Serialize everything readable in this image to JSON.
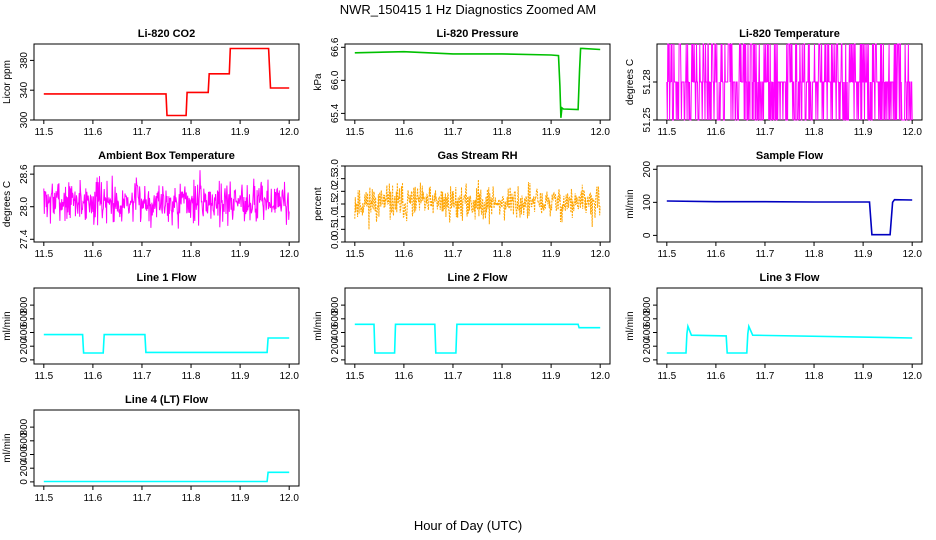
{
  "figure": {
    "title": "NWR_150415  1 Hz Diagnostics Zoomed AM",
    "xlabel": "Hour of Day (UTC)"
  },
  "chart_data": [
    {
      "type": "line",
      "title": "Li-820 CO2",
      "ylabel": "Licor ppm",
      "color": "#ff0000",
      "xlim": [
        11.48,
        12.02
      ],
      "ylim": [
        300,
        402
      ],
      "xticks": [
        "11.5",
        "11.6",
        "11.7",
        "11.8",
        "11.9",
        "12.0"
      ],
      "yticks": [
        "300",
        "340",
        "380"
      ],
      "series": [
        {
          "x": [
            11.5,
            11.749,
            11.751,
            11.79,
            11.792,
            11.835,
            11.837,
            11.878,
            11.88,
            11.958,
            11.962,
            12.0
          ],
          "y": [
            335,
            335,
            306,
            306,
            337,
            337,
            362,
            362,
            396,
            396,
            343,
            343
          ]
        }
      ]
    },
    {
      "type": "line",
      "title": "Li-820 Pressure",
      "ylabel": "kPa",
      "color": "#00c000",
      "xlim": [
        11.48,
        12.02
      ],
      "ylim": [
        65.28,
        66.66
      ],
      "xticks": [
        "11.5",
        "11.6",
        "11.7",
        "11.8",
        "11.9",
        "12.0"
      ],
      "yticks": [
        "65.4",
        "66.0",
        "66.6"
      ],
      "series": [
        {
          "x": [
            11.5,
            11.6,
            11.7,
            11.8,
            11.9,
            11.915,
            11.918,
            11.92,
            11.922,
            11.925,
            11.955,
            11.958,
            11.96,
            11.964,
            12.0
          ],
          "y": [
            66.5,
            66.52,
            66.48,
            66.48,
            66.46,
            66.45,
            65.9,
            65.32,
            65.5,
            65.48,
            65.47,
            66.2,
            66.58,
            66.58,
            66.56
          ]
        }
      ]
    },
    {
      "type": "line",
      "title": "Li-820 Temperature",
      "ylabel": "degrees C",
      "color": "#ff00ff",
      "xlim": [
        11.48,
        12.02
      ],
      "ylim": [
        51.25,
        51.31
      ],
      "xticks": [
        "11.5",
        "11.6",
        "11.7",
        "11.8",
        "11.9",
        "12.0"
      ],
      "yticks": [
        "51.25",
        "51.28"
      ],
      "noise": {
        "kind": "discrete",
        "levels": [
          51.25,
          51.28,
          51.31
        ],
        "base": 51.28,
        "seed": 3
      }
    },
    {
      "type": "line",
      "title": "Ambient Box Temperature",
      "ylabel": "degrees C",
      "color": "#ff00ff",
      "xlim": [
        11.48,
        12.02
      ],
      "ylim": [
        27.35,
        28.75
      ],
      "xticks": [
        "11.5",
        "11.6",
        "11.7",
        "11.8",
        "11.9",
        "12.0"
      ],
      "yticks": [
        "27.4",
        "28.0",
        "28.6"
      ],
      "noise": {
        "kind": "gauss",
        "mean": 28.1,
        "sd": 0.2,
        "min": 27.45,
        "max": 28.7,
        "seed": 7
      }
    },
    {
      "type": "line",
      "title": "Gas Stream RH",
      "ylabel": "percent",
      "color": "#ffa500",
      "xlim": [
        11.48,
        12.02
      ],
      "ylim": [
        0,
        3.0
      ],
      "xticks": [
        "11.5",
        "11.6",
        "11.7",
        "11.8",
        "11.9",
        "12.0"
      ],
      "yticks": [
        "0.0",
        "0.5",
        "1.0",
        "1.5",
        "2.0",
        "2.5",
        "3.0"
      ],
      "noise": {
        "kind": "gauss",
        "mean": 1.55,
        "sd": 0.35,
        "min": 0.05,
        "max": 2.9,
        "seed": 11
      }
    },
    {
      "type": "line",
      "title": "Sample Flow",
      "ylabel": "ml/min",
      "color": "#0000c0",
      "xlim": [
        11.48,
        12.02
      ],
      "ylim": [
        -20,
        210
      ],
      "xticks": [
        "11.5",
        "11.6",
        "11.7",
        "11.8",
        "11.9",
        "12.0"
      ],
      "yticks": [
        "0",
        "100",
        "200"
      ],
      "series": [
        {
          "x": [
            11.5,
            11.6,
            11.7,
            11.8,
            11.9,
            11.913,
            11.918,
            11.955,
            11.96,
            11.964,
            12.0
          ],
          "y": [
            104,
            102,
            102,
            101,
            101,
            101,
            2,
            2,
            100,
            108,
            107
          ]
        }
      ]
    },
    {
      "type": "line",
      "title": "Line 1 Flow",
      "ylabel": "ml/min",
      "color": "#00ffff",
      "xlim": [
        11.48,
        12.02
      ],
      "ylim": [
        -60,
        1050
      ],
      "xticks": [
        "11.5",
        "11.6",
        "11.7",
        "11.8",
        "11.9",
        "12.0"
      ],
      "yticks": [
        "0",
        "200",
        "400",
        "600",
        "800"
      ],
      "series": [
        {
          "x": [
            11.5,
            11.579,
            11.581,
            11.621,
            11.623,
            11.706,
            11.708,
            11.955,
            11.957,
            12.0
          ],
          "y": [
            370,
            370,
            100,
            100,
            370,
            370,
            110,
            110,
            320,
            320
          ]
        }
      ]
    },
    {
      "type": "line",
      "title": "Line 2 Flow",
      "ylabel": "ml/min",
      "color": "#00ffff",
      "xlim": [
        11.48,
        12.02
      ],
      "ylim": [
        -60,
        1050
      ],
      "xticks": [
        "11.5",
        "11.6",
        "11.7",
        "11.8",
        "11.9",
        "12.0"
      ],
      "yticks": [
        "0",
        "200",
        "400",
        "600",
        "800"
      ],
      "series": [
        {
          "x": [
            11.5,
            11.539,
            11.541,
            11.581,
            11.583,
            11.663,
            11.665,
            11.706,
            11.708,
            11.955,
            11.957,
            12.0
          ],
          "y": [
            520,
            520,
            100,
            100,
            520,
            520,
            100,
            100,
            520,
            520,
            470,
            470
          ]
        }
      ]
    },
    {
      "type": "line",
      "title": "Line 3 Flow",
      "ylabel": "ml/min",
      "color": "#00ffff",
      "xlim": [
        11.48,
        12.02
      ],
      "ylim": [
        -60,
        1050
      ],
      "xticks": [
        "11.5",
        "11.6",
        "11.7",
        "11.8",
        "11.9",
        "12.0"
      ],
      "yticks": [
        "0",
        "200",
        "400",
        "600",
        "800"
      ],
      "series": [
        {
          "x": [
            11.5,
            11.539,
            11.541,
            11.543,
            11.55,
            11.621,
            11.623,
            11.663,
            11.665,
            11.667,
            11.675,
            12.0
          ],
          "y": [
            100,
            100,
            380,
            490,
            360,
            350,
            100,
            100,
            380,
            490,
            360,
            320
          ]
        }
      ]
    },
    {
      "type": "line",
      "title": "Line 4 (LT) Flow",
      "ylabel": "ml/min",
      "color": "#00ffff",
      "xlim": [
        11.48,
        12.02
      ],
      "ylim": [
        -60,
        1050
      ],
      "xticks": [
        "11.5",
        "11.6",
        "11.7",
        "11.8",
        "11.9",
        "12.0"
      ],
      "yticks": [
        "0",
        "200",
        "400",
        "600",
        "800"
      ],
      "series": [
        {
          "x": [
            11.5,
            11.955,
            11.957,
            12.0
          ],
          "y": [
            5,
            5,
            140,
            140
          ]
        }
      ]
    }
  ]
}
